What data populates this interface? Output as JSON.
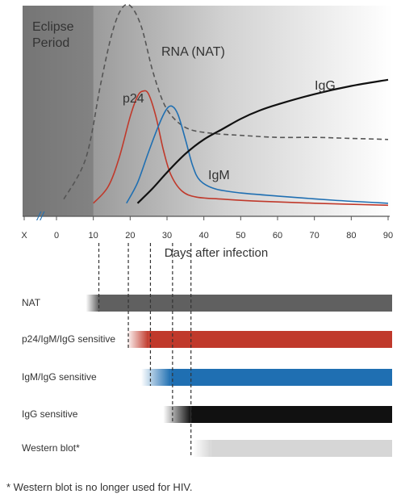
{
  "chart_data": {
    "type": "line",
    "xlabel": "Days after infection",
    "x_ticks": [
      "X",
      "0",
      "10",
      "20",
      "30",
      "40",
      "50",
      "60",
      "70",
      "80",
      "90"
    ],
    "xlim": [
      0,
      90
    ],
    "axis_break": "//",
    "shaded_region": {
      "label": "Eclipse Period",
      "x_range": [
        0,
        10
      ]
    },
    "series": [
      {
        "name": "RNA (NAT)",
        "color": "#555555",
        "style": "dashed",
        "points": [
          [
            2,
            0.06
          ],
          [
            8,
            0.26
          ],
          [
            12,
            0.62
          ],
          [
            15,
            0.86
          ],
          [
            17.5,
            0.98
          ],
          [
            20,
            1.0
          ],
          [
            23,
            0.9
          ],
          [
            26,
            0.69
          ],
          [
            29,
            0.53
          ],
          [
            32,
            0.45
          ],
          [
            36,
            0.4
          ],
          [
            42,
            0.38
          ],
          [
            50,
            0.37
          ],
          [
            60,
            0.36
          ],
          [
            70,
            0.36
          ],
          [
            80,
            0.355
          ],
          [
            90,
            0.35
          ]
        ]
      },
      {
        "name": "p24",
        "color": "#c0392b",
        "style": "solid",
        "points": [
          [
            10,
            0.04
          ],
          [
            14,
            0.12
          ],
          [
            17,
            0.26
          ],
          [
            20,
            0.46
          ],
          [
            22,
            0.56
          ],
          [
            23.5,
            0.585
          ],
          [
            25,
            0.57
          ],
          [
            27,
            0.46
          ],
          [
            29,
            0.3
          ],
          [
            31,
            0.18
          ],
          [
            34,
            0.1
          ],
          [
            38,
            0.07
          ],
          [
            45,
            0.06
          ],
          [
            55,
            0.05
          ],
          [
            70,
            0.04
          ],
          [
            90,
            0.03
          ]
        ]
      },
      {
        "name": "IgM",
        "color": "#1f6fb2",
        "style": "solid",
        "points": [
          [
            19,
            0.04
          ],
          [
            22,
            0.14
          ],
          [
            25,
            0.29
          ],
          [
            28,
            0.43
          ],
          [
            30,
            0.5
          ],
          [
            31.5,
            0.51
          ],
          [
            33,
            0.47
          ],
          [
            35,
            0.35
          ],
          [
            37,
            0.22
          ],
          [
            39,
            0.15
          ],
          [
            43,
            0.11
          ],
          [
            50,
            0.09
          ],
          [
            60,
            0.075
          ],
          [
            75,
            0.055
          ],
          [
            90,
            0.04
          ]
        ]
      },
      {
        "name": "IgG",
        "color": "#111111",
        "style": "solid",
        "points": [
          [
            22,
            0.04
          ],
          [
            26,
            0.11
          ],
          [
            30,
            0.19
          ],
          [
            35,
            0.28
          ],
          [
            40,
            0.35
          ],
          [
            45,
            0.4
          ],
          [
            50,
            0.45
          ],
          [
            55,
            0.49
          ],
          [
            60,
            0.52
          ],
          [
            70,
            0.57
          ],
          [
            80,
            0.61
          ],
          [
            90,
            0.64
          ]
        ]
      }
    ],
    "tests": [
      {
        "name": "NAT",
        "color": "#606060",
        "fade_from": 8,
        "start": 11.5
      },
      {
        "name": "p24/IgM/IgG sensitive",
        "color": "#c0392b",
        "fade_from": 19,
        "start": 25
      },
      {
        "name": "IgM/IgG sensitive",
        "color": "#1f6fb2",
        "fade_from": 23,
        "start": 31
      },
      {
        "name": "IgG sensitive",
        "color": "#111111",
        "fade_from": 29,
        "start": 36.5
      },
      {
        "name": "Western blot*",
        "color": "#d6d6d6",
        "fade_from": 37,
        "start": 42
      }
    ],
    "detection_markers": [
      11.5,
      19.5,
      25.5,
      31.5,
      36.5
    ]
  },
  "footnote": "* Western blot is no longer used for HIV."
}
